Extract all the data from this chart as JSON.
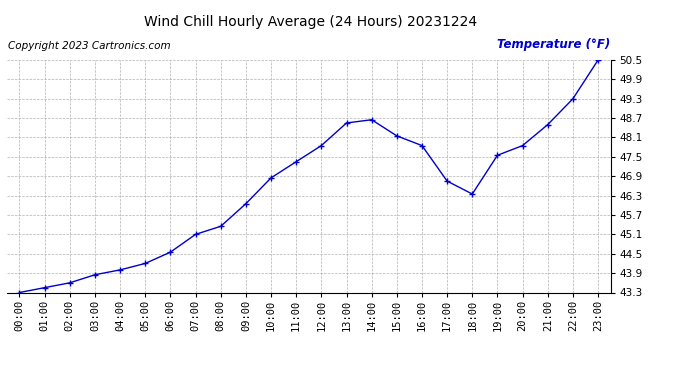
{
  "title": "Wind Chill Hourly Average (24 Hours) 20231224",
  "ylabel": "Temperature (°F)",
  "copyright": "Copyright 2023 Cartronics.com",
  "hours": [
    "00:00",
    "01:00",
    "02:00",
    "03:00",
    "04:00",
    "05:00",
    "06:00",
    "07:00",
    "08:00",
    "09:00",
    "10:00",
    "11:00",
    "12:00",
    "13:00",
    "14:00",
    "15:00",
    "16:00",
    "17:00",
    "18:00",
    "19:00",
    "20:00",
    "21:00",
    "22:00",
    "23:00"
  ],
  "values": [
    43.3,
    43.45,
    43.6,
    43.85,
    44.0,
    44.2,
    44.55,
    45.1,
    45.35,
    46.05,
    46.85,
    47.35,
    47.85,
    48.55,
    48.65,
    48.15,
    47.85,
    46.75,
    46.35,
    47.55,
    47.85,
    48.5,
    49.3,
    50.5
  ],
  "ylim_min": 43.3,
  "ylim_max": 50.5,
  "yticks": [
    43.3,
    43.9,
    44.5,
    45.1,
    45.7,
    46.3,
    46.9,
    47.5,
    48.1,
    48.7,
    49.3,
    49.9,
    50.5
  ],
  "line_color": "#0000cc",
  "marker_color": "#0000cc",
  "grid_color": "#aaaaaa",
  "background_color": "#ffffff",
  "title_color": "#000000",
  "ylabel_color": "#0000cc",
  "copyright_color": "#000000",
  "title_fontsize": 10,
  "tick_label_fontsize": 7.5,
  "copyright_fontsize": 7.5,
  "ylabel_fontsize": 8.5
}
